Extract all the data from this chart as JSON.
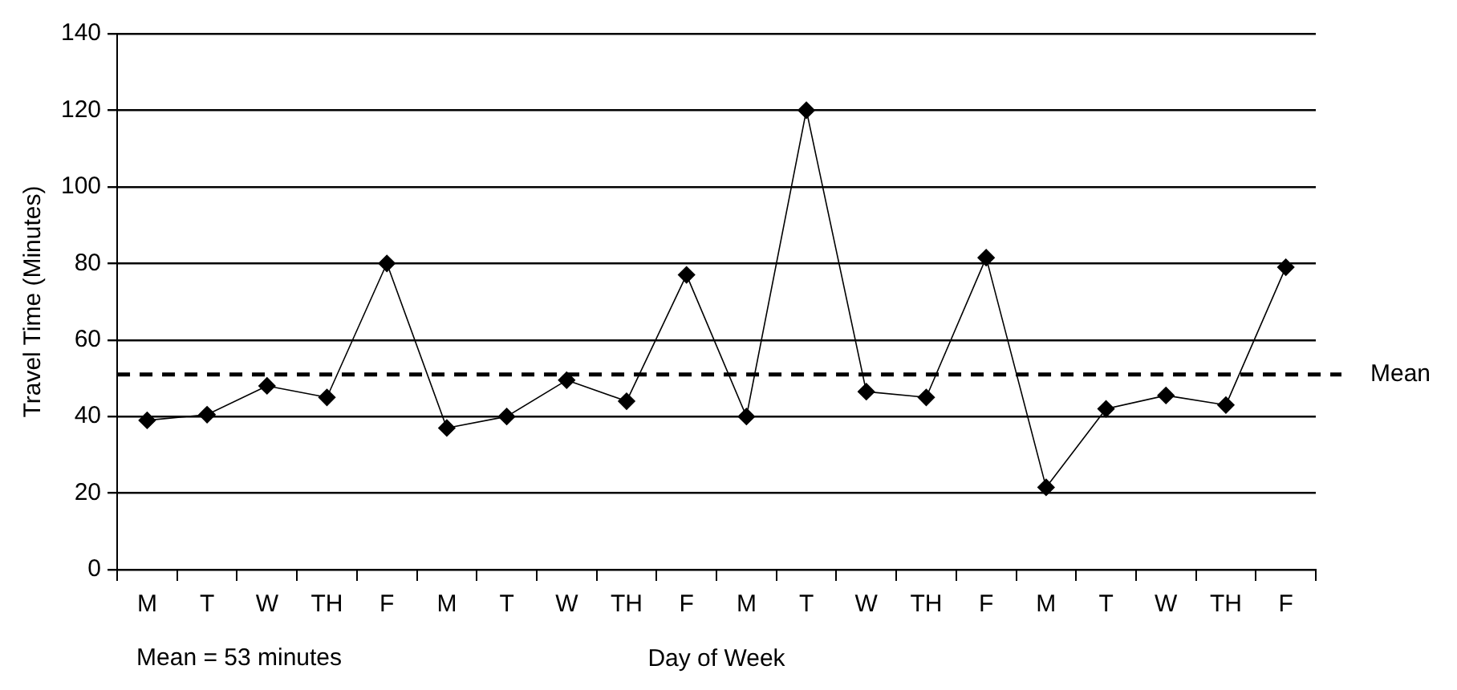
{
  "chart_data": {
    "type": "line",
    "xlabel": "Day of Week",
    "ylabel": "Travel Time (Minutes)",
    "categories": [
      "M",
      "T",
      "W",
      "TH",
      "F",
      "M",
      "T",
      "W",
      "TH",
      "F",
      "M",
      "T",
      "W",
      "TH",
      "F",
      "M",
      "T",
      "W",
      "TH",
      "F"
    ],
    "series": [
      {
        "color": "#000000",
        "values": [
          39,
          40.5,
          48,
          45,
          80,
          37,
          40,
          49.5,
          44,
          77,
          40,
          120,
          46.5,
          45,
          81.5,
          21.5,
          42,
          45.5,
          43,
          79
        ]
      }
    ],
    "ylim": [
      0,
      140
    ],
    "yticks": [
      0,
      20,
      40,
      60,
      80,
      100,
      120,
      140
    ],
    "grid": "y",
    "marker": "diamond",
    "line_style": "solid",
    "ref_lines": [
      {
        "axis": "y",
        "value": 51,
        "label": "Mean",
        "line_style": "dashed",
        "color": "#000000"
      }
    ],
    "annotations": [
      "Mean = 53 minutes"
    ]
  }
}
